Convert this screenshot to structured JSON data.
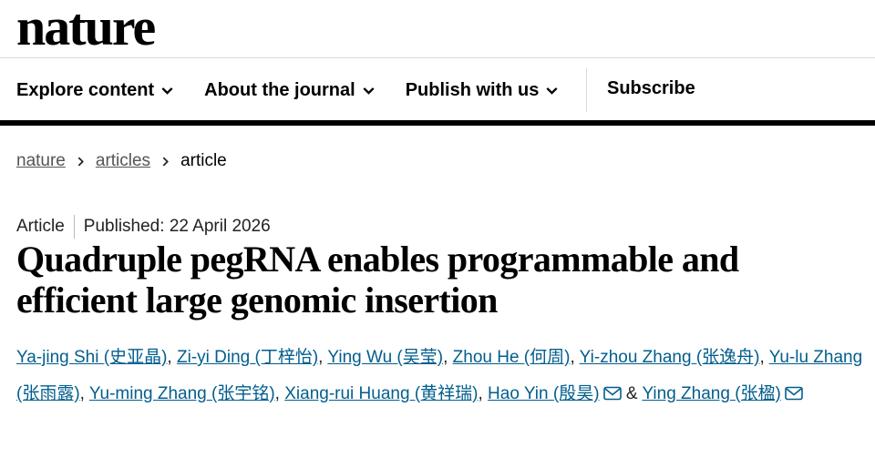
{
  "header": {
    "logo": "nature",
    "nav": [
      "Explore content",
      "About the journal",
      "Publish with us"
    ],
    "subscribe": "Subscribe"
  },
  "breadcrumb": [
    "nature",
    "articles",
    "article"
  ],
  "article": {
    "type": "Article",
    "published_label": "Published:",
    "published_date": "22 April 2026",
    "title": "Quadruple pegRNA enables programmable and efficient large genomic insertion",
    "authors": [
      {
        "name": "Ya-jing Shi",
        "name_cn": "(史亚晶)",
        "sep": ","
      },
      {
        "name": "Zi-yi Ding",
        "name_cn": "(丁梓怡)",
        "sep": ","
      },
      {
        "name": "Ying Wu",
        "name_cn": "(吴莹)",
        "sep": ","
      },
      {
        "name": "Zhou He",
        "name_cn": "(何周)",
        "sep": ","
      },
      {
        "name": "Yi-zhou Zhang",
        "name_cn": "(张逸舟)",
        "sep": ","
      },
      {
        "name": "Yu-lu Zhang",
        "name_cn": "(张雨露)",
        "sep": ","
      },
      {
        "name": "Yu-ming Zhang",
        "name_cn": "(张宇铭)",
        "sep": ","
      },
      {
        "name": "Xiang-rui Huang",
        "name_cn": "(黄祥瑞)",
        "sep": ","
      },
      {
        "name": "Hao Yin",
        "name_cn": "(殷昊)",
        "corresponding": true,
        "sep": "&"
      },
      {
        "name": "Ying Zhang",
        "name_cn": "(张楹)",
        "corresponding": true
      }
    ]
  }
}
